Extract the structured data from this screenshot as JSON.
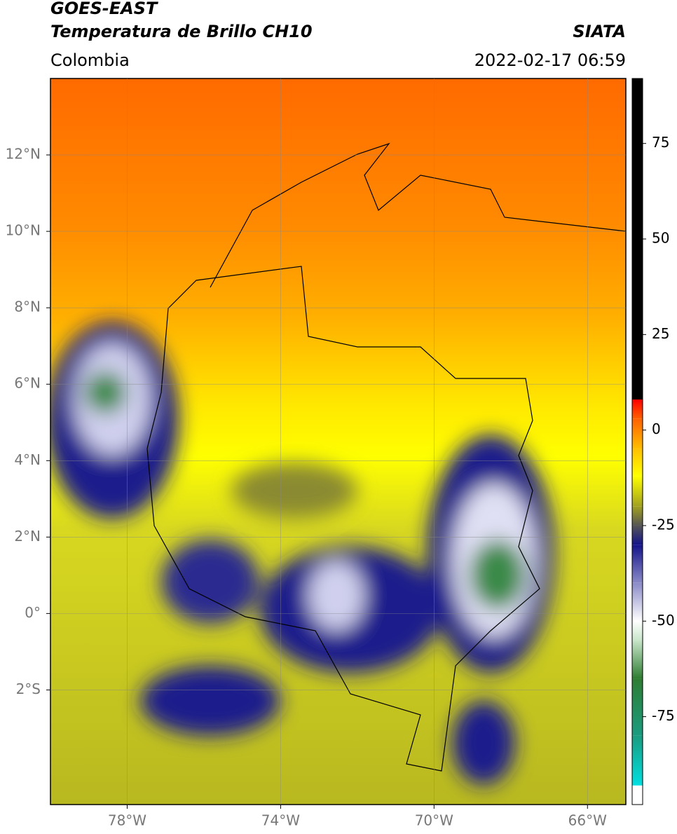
{
  "header": {
    "satellite": "GOES-EAST",
    "product": "Temperatura de Brillo CH10",
    "agency": "SIATA",
    "region": "Colombia",
    "datetime": "2022-02-17 06:59"
  },
  "map": {
    "xlim": [
      -80,
      -65
    ],
    "ylim": [
      -5,
      14
    ],
    "grid": true,
    "xticks": [
      {
        "value": -78,
        "label": "78°W"
      },
      {
        "value": -74,
        "label": "74°W"
      },
      {
        "value": -70,
        "label": "70°W"
      },
      {
        "value": -66,
        "label": "66°W"
      }
    ],
    "yticks": [
      {
        "value": 12,
        "label": "12°N"
      },
      {
        "value": 10,
        "label": "10°N"
      },
      {
        "value": 8,
        "label": "8°N"
      },
      {
        "value": 6,
        "label": "6°N"
      },
      {
        "value": 4,
        "label": "4°N"
      },
      {
        "value": 2,
        "label": "2°N"
      },
      {
        "value": 0,
        "label": "0°"
      },
      {
        "value": -2,
        "label": "2°S"
      }
    ]
  },
  "colorbar": {
    "lim": [
      -98,
      92
    ],
    "ticks": [
      75,
      50,
      25,
      0,
      -25,
      -50,
      -75
    ],
    "stops": [
      {
        "value": -98,
        "color": "#ffffff"
      },
      {
        "value": -93,
        "color": "#ffffff"
      },
      {
        "value": -93,
        "color": "#00e0e0"
      },
      {
        "value": -80,
        "color": "#1a9c80"
      },
      {
        "value": -65,
        "color": "#2e7d32"
      },
      {
        "value": -55,
        "color": "#c8e6c9"
      },
      {
        "value": -50,
        "color": "#ffffff"
      },
      {
        "value": -40,
        "color": "#8a8ac8"
      },
      {
        "value": -30,
        "color": "#14148a"
      },
      {
        "value": -25,
        "color": "#555555"
      },
      {
        "value": -20,
        "color": "#a0a020"
      },
      {
        "value": -12,
        "color": "#ffff00"
      },
      {
        "value": -5,
        "color": "#ffc000"
      },
      {
        "value": 3,
        "color": "#ff6000"
      },
      {
        "value": 8,
        "color": "#ff0000"
      },
      {
        "value": 8,
        "color": "#000000"
      },
      {
        "value": 92,
        "color": "#000000"
      }
    ]
  }
}
